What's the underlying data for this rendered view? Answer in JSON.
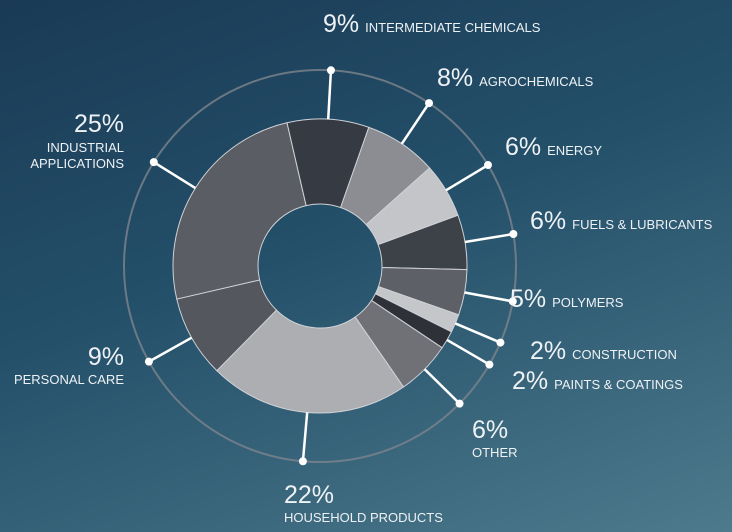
{
  "chart_data": {
    "type": "donut",
    "categories": [
      "INTERMEDIATE CHEMICALS",
      "AGROCHEMICALS",
      "ENERGY",
      "FUELS & LUBRICANTS",
      "POLYMERS",
      "CONSTRUCTION",
      "PAINTS & COATINGS",
      "OTHER",
      "HOUSEHOLD PRODUCTS",
      "PERSONAL CARE",
      "INDUSTRIAL APPLICATIONS"
    ],
    "values": [
      9,
      8,
      6,
      6,
      5,
      2,
      2,
      6,
      22,
      9,
      25
    ],
    "value_labels": [
      "9%",
      "8%",
      "6%",
      "6%",
      "5%",
      "2%",
      "2%",
      "6%",
      "22%",
      "9%",
      "25%"
    ],
    "colors": [
      "#363a42",
      "#8b8d92",
      "#c3c5c9",
      "#3d4148",
      "#5e6067",
      "#c4c6ca",
      "#2e3238",
      "#6f7176",
      "#acaeb2",
      "#54575e",
      "#5b5d64"
    ]
  }
}
